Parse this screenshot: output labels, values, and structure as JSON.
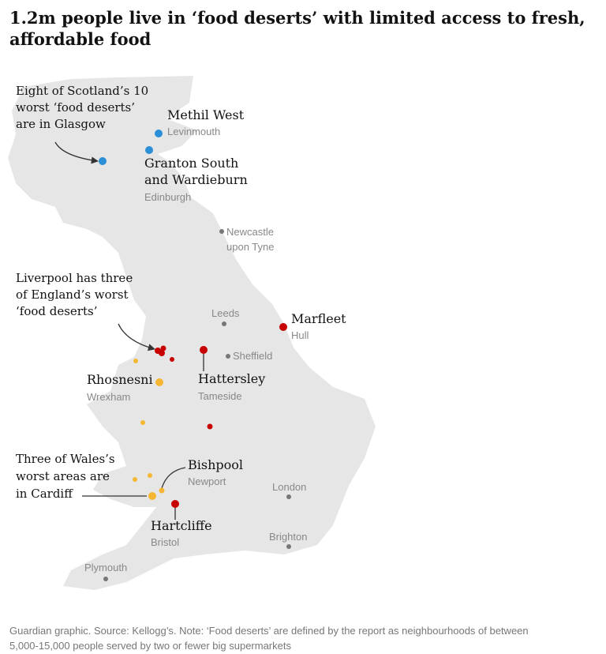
{
  "title": {
    "lines": [
      "1.2m people live in ‘food deserts’ with limited access to fresh,",
      "affordable food"
    ]
  },
  "annotations": [
    {
      "lines": [
        "Eight of Scotland’s 10",
        "worst ‘food deserts’",
        "are in Glasgow"
      ]
    },
    {
      "lines": [
        "Liverpool has three",
        "of England’s worst",
        "‘food deserts’"
      ]
    },
    {
      "lines": [
        "Three of Wales’s",
        "worst areas are",
        "in Cardiff"
      ]
    }
  ],
  "places": [
    {
      "name": [
        "Methil West"
      ],
      "area": "Levinmouth"
    },
    {
      "name": [
        "Granton South",
        "and Wardieburn"
      ],
      "area": "Edinburgh"
    },
    {
      "name": [
        "Marfleet"
      ],
      "area": "Hull"
    },
    {
      "name": [
        "Rhosnesni"
      ],
      "area": "Wrexham"
    },
    {
      "name": [
        "Hattersley"
      ],
      "area": "Tameside"
    },
    {
      "name": [
        "Bishpool"
      ],
      "area": "Newport"
    },
    {
      "name": [
        "Hartcliffe"
      ],
      "area": "Bristol"
    }
  ],
  "cities": [
    {
      "lines": [
        "Newcastle",
        "upon Tyne"
      ]
    },
    {
      "lines": [
        "Leeds"
      ]
    },
    {
      "lines": [
        "Sheffield"
      ]
    },
    {
      "lines": [
        "London"
      ]
    },
    {
      "lines": [
        "Brighton"
      ]
    },
    {
      "lines": [
        "Plymouth"
      ]
    }
  ],
  "footer": {
    "lines": [
      "Guardian graphic. Source: Kellogg’s. Note: ‘Food deserts’ are defined by the report as neighbourhoods of between",
      "5,000-15,000 people served by two or fewer big supermarkets"
    ]
  }
}
